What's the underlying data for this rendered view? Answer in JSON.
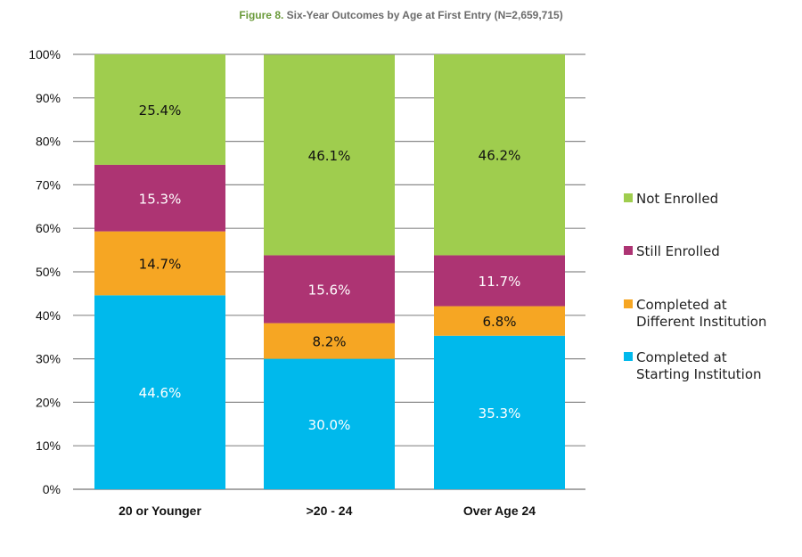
{
  "title_prefix": "Figure 8.",
  "title_main": "Six-Year Outcomes by Age at First Entry (N=2,659,715)",
  "colors": {
    "not_enrolled": "#9fcd4e",
    "still_enrolled": "#ad3473",
    "completed_different": "#f6a623",
    "completed_starting": "#00b9ec"
  },
  "chart_data": {
    "type": "bar",
    "stacked": true,
    "title": "Figure 8. Six-Year Outcomes by Age at First Entry (N=2,659,715)",
    "categories": [
      "20 or Younger",
      ">20 - 24",
      "Over Age 24"
    ],
    "ylim": [
      0,
      100
    ],
    "yticks": [
      "0%",
      "10%",
      "20%",
      "30%",
      "40%",
      "50%",
      "60%",
      "70%",
      "80%",
      "90%",
      "100%"
    ],
    "series": [
      {
        "name": "Completed at Starting Institution",
        "values": [
          44.6,
          30.0,
          35.3
        ],
        "labels": [
          "44.6%",
          "30.0%",
          "35.3%"
        ],
        "color": "#00b9ec",
        "text_color": "#ffffff"
      },
      {
        "name": "Completed at Different Institution",
        "values": [
          14.7,
          8.2,
          6.8
        ],
        "labels": [
          "14.7%",
          "8.2%",
          "6.8%"
        ],
        "color": "#f6a623",
        "text_color": "#111111"
      },
      {
        "name": "Still Enrolled",
        "values": [
          15.3,
          15.6,
          11.7
        ],
        "labels": [
          "15.3%",
          "15.6%",
          "11.7%"
        ],
        "color": "#ad3473",
        "text_color": "#ffffff"
      },
      {
        "name": "Not Enrolled",
        "values": [
          25.4,
          46.1,
          46.2
        ],
        "labels": [
          "25.4%",
          "46.1%",
          "46.2%"
        ],
        "color": "#9fcd4e",
        "text_color": "#111111"
      }
    ],
    "legend": [
      {
        "lines": [
          "Not Enrolled"
        ],
        "color": "#9fcd4e"
      },
      {
        "lines": [
          "Still Enrolled"
        ],
        "color": "#ad3473"
      },
      {
        "lines": [
          "Completed at",
          "Different Institution"
        ],
        "color": "#f6a623"
      },
      {
        "lines": [
          "Completed at",
          "Starting Institution"
        ],
        "color": "#00b9ec"
      }
    ],
    "legend_position": "right",
    "grid": true
  }
}
